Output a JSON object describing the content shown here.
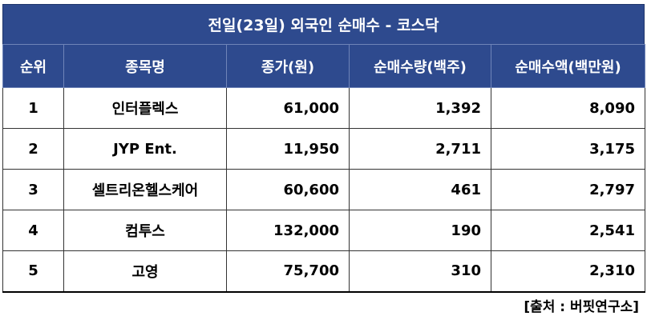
{
  "title": "전일(23일) 외국인 순매수 - 코스닥",
  "headers": [
    "순위",
    "종목명",
    "종가(원)",
    "순매수량(백주)",
    "순매수액(백만원)"
  ],
  "rows": [
    [
      "1",
      "인터플렉스",
      "61,000",
      "1,392",
      "8,090"
    ],
    [
      "2",
      "JYP Ent.",
      "11,950",
      "2,711",
      "3,175"
    ],
    [
      "3",
      "셀트리온헬스케어",
      "60,600",
      "461",
      "2,797"
    ],
    [
      "4",
      "컴투스",
      "132,000",
      "190",
      "2,541"
    ],
    [
      "5",
      "고영",
      "75,700",
      "310",
      "2,310"
    ]
  ],
  "source": "[출처 : 버핏연구소]",
  "colors": {
    "header_bg": "#2E4A8E",
    "header_text": "#ffffff"
  }
}
